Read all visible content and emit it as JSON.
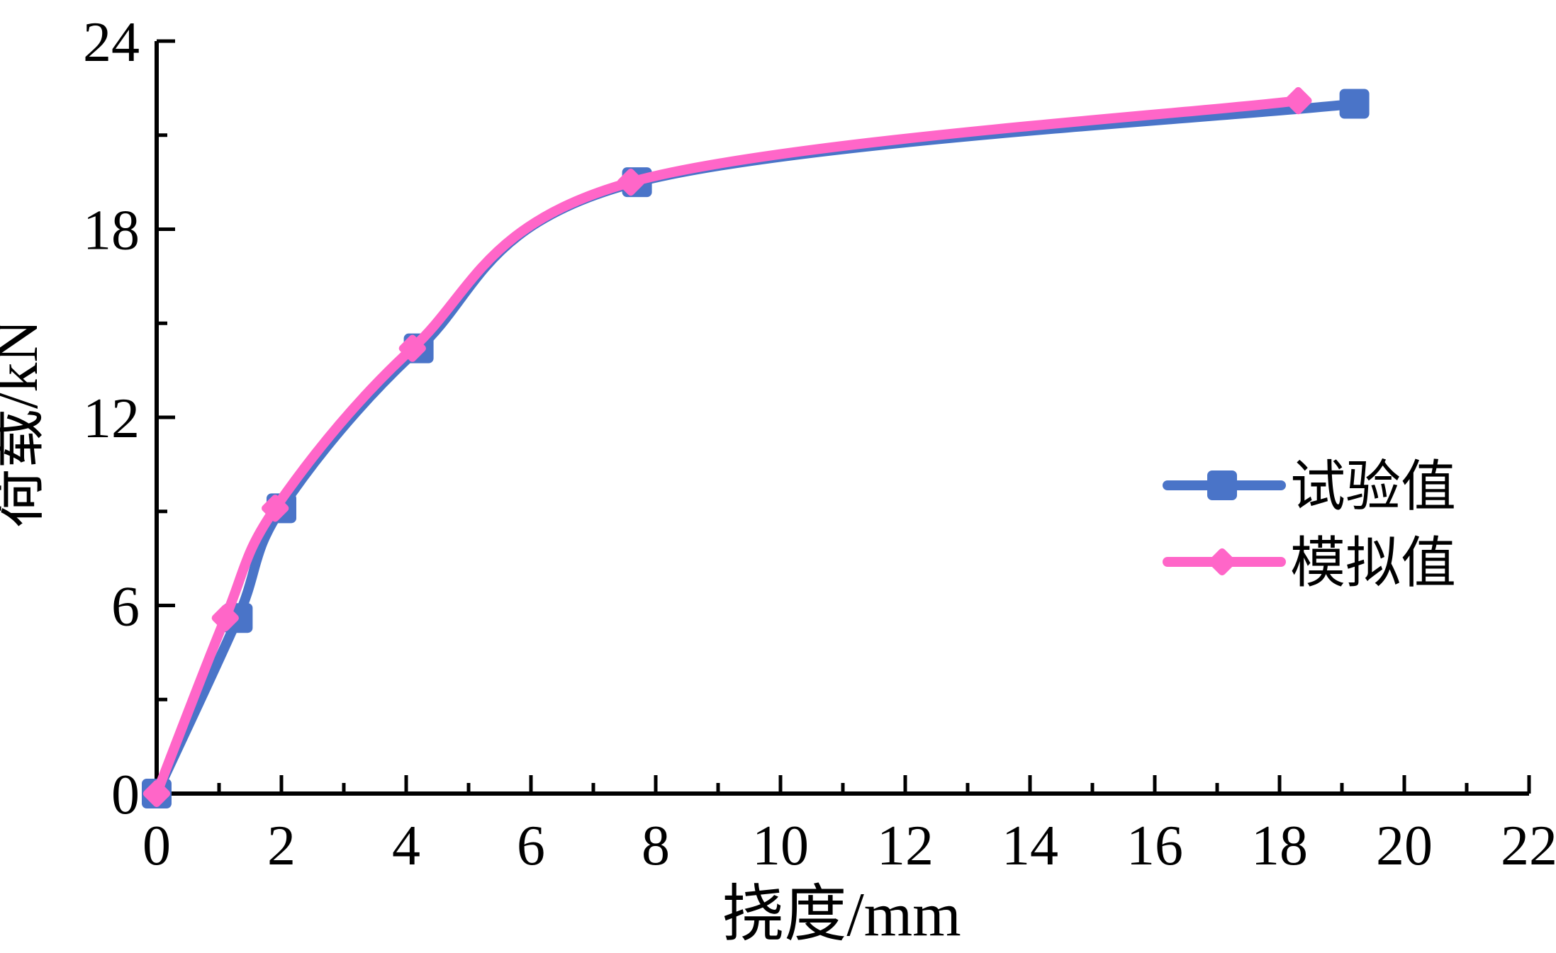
{
  "figure": {
    "background": "#ffffff",
    "axis_color": "#000000",
    "text_color": "#000000"
  },
  "chart_data": {
    "type": "line",
    "title": "",
    "xlabel": "挠度/mm",
    "ylabel": "荷载/kN",
    "xlim": [
      0,
      22
    ],
    "ylim": [
      0,
      24
    ],
    "x_major_ticks": [
      0,
      2,
      4,
      6,
      8,
      10,
      12,
      14,
      16,
      18,
      20,
      22
    ],
    "x_minor_tick_step": 1,
    "y_major_ticks": [
      0,
      6,
      12,
      18,
      24
    ],
    "y_minor_tick_step": 3,
    "grid": false,
    "legend_position": "middle-right",
    "series": [
      {
        "name": "试验值",
        "marker": "square",
        "color": "#4A74C8",
        "points": [
          [
            0,
            0
          ],
          [
            1.3,
            5.6
          ],
          [
            2.0,
            9.1
          ],
          [
            4.2,
            14.2
          ],
          [
            7.7,
            19.5
          ],
          [
            19.2,
            22.0
          ]
        ]
      },
      {
        "name": "模拟值",
        "marker": "diamond",
        "color": "#FF66C8",
        "points": [
          [
            0,
            0
          ],
          [
            1.1,
            5.6
          ],
          [
            1.9,
            9.1
          ],
          [
            4.1,
            14.2
          ],
          [
            7.6,
            19.5
          ],
          [
            18.3,
            22.1
          ]
        ]
      }
    ]
  }
}
